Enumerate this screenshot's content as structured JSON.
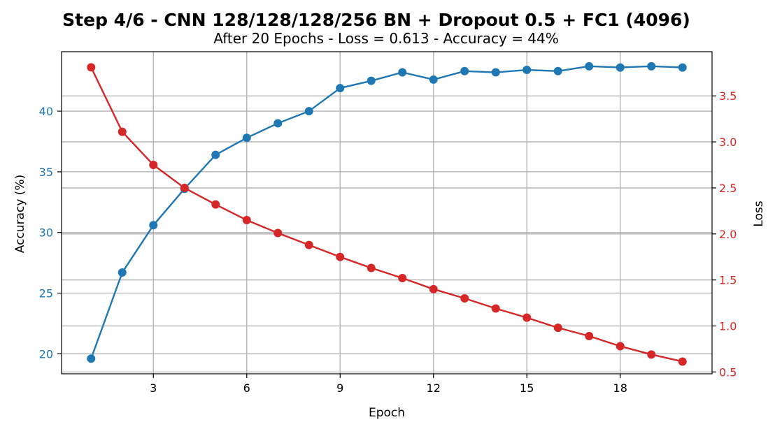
{
  "chart_data": {
    "type": "line",
    "title": "Step 4/6 - CNN 128/128/128/256 BN + Dropout 0.5 + FC1 (4096)",
    "subtitle": "After 20 Epochs - Loss = 0.613 - Accuracy = 44%",
    "xlabel": "Epoch",
    "ylabel_left": "Accuracy (%)",
    "ylabel_right": "Loss",
    "xlim": [
      0.05,
      20.95
    ],
    "x_ticks": [
      3,
      6,
      9,
      12,
      15,
      18
    ],
    "x": [
      1,
      2,
      3,
      4,
      5,
      6,
      7,
      8,
      9,
      10,
      11,
      12,
      13,
      14,
      15,
      16,
      17,
      18,
      19,
      20
    ],
    "left_axis": {
      "ylim": [
        18.35,
        44.9
      ],
      "ticks": [
        20,
        25,
        30,
        35,
        40
      ],
      "color": "#1f77b4"
    },
    "right_axis": {
      "ylim": [
        0.48,
        3.98
      ],
      "ticks": [
        0.5,
        1.0,
        1.5,
        2.0,
        2.5,
        3.0,
        3.5
      ],
      "tick_labels": [
        "0.5",
        "1.0",
        "1.5",
        "2.0",
        "2.5",
        "3.0",
        "3.5"
      ],
      "color": "#d62728"
    },
    "grid": true,
    "series": [
      {
        "axis": "left",
        "color": "#1f77b4",
        "values": [
          19.6,
          26.7,
          30.6,
          33.6,
          36.4,
          37.8,
          39.0,
          40.0,
          41.9,
          42.5,
          43.2,
          42.6,
          43.3,
          43.2,
          43.4,
          43.3,
          43.7,
          43.6,
          43.7,
          43.6
        ]
      },
      {
        "axis": "right",
        "color": "#d62728",
        "values": [
          3.81,
          3.11,
          2.75,
          2.5,
          2.32,
          2.15,
          2.01,
          1.88,
          1.75,
          1.63,
          1.52,
          1.4,
          1.3,
          1.19,
          1.09,
          0.98,
          0.89,
          0.78,
          0.69,
          0.613
        ]
      }
    ]
  }
}
